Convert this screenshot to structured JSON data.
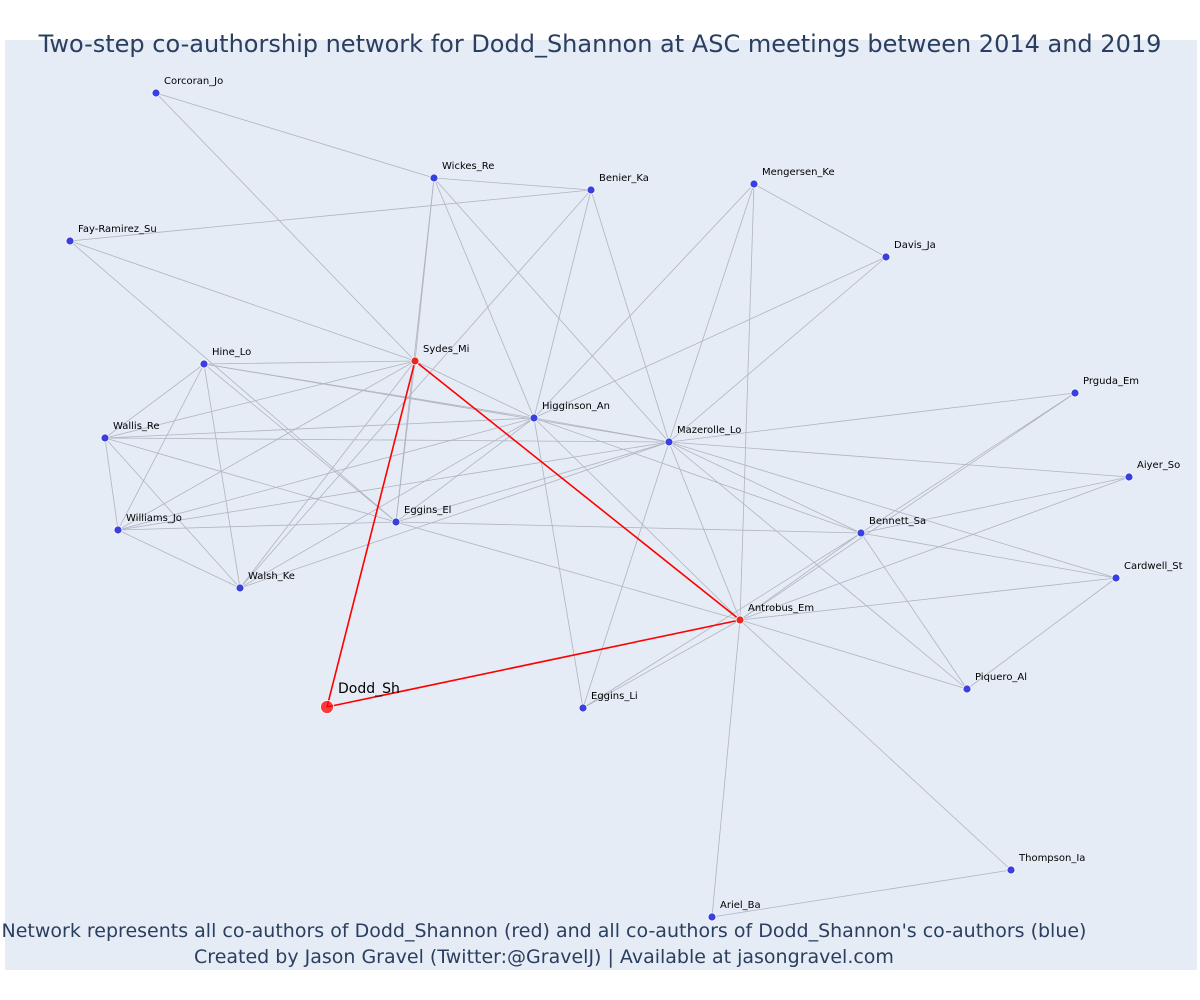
{
  "title": "Two-step co-authorship network for Dodd_Shannon at ASC meetings between 2014 and 2019",
  "caption": {
    "line1": "Network represents all co-authors of Dodd_Shannon (red) and all co-authors of Dodd_Shannon's co-authors (blue)",
    "line2": "Created by Jason Gravel (Twitter:@GravelJ) | Available at jasongravel.com"
  },
  "colors": {
    "focal": "#ff0000",
    "coauthor": "#e8281e",
    "second_step": "#3a3fe0",
    "edge": "#b0b4c0",
    "focal_edge": "#ff0000",
    "background": "#e5ecf6"
  },
  "chart_data": {
    "type": "network",
    "focal": "Dodd_Sh",
    "nodes": [
      {
        "id": "Dodd_Sh",
        "group": "focal"
      },
      {
        "id": "Sydes_Mi",
        "group": "coauthor"
      },
      {
        "id": "Antrobus_Em",
        "group": "coauthor"
      },
      {
        "id": "Corcoran_Jo",
        "group": "second"
      },
      {
        "id": "Wickes_Re",
        "group": "second"
      },
      {
        "id": "Benier_Ka",
        "group": "second"
      },
      {
        "id": "Mengersen_Ke",
        "group": "second"
      },
      {
        "id": "Fay-Ramirez_Su",
        "group": "second"
      },
      {
        "id": "Davis_Ja",
        "group": "second"
      },
      {
        "id": "Hine_Lo",
        "group": "second"
      },
      {
        "id": "Prguda_Em",
        "group": "second"
      },
      {
        "id": "Higginson_An",
        "group": "second"
      },
      {
        "id": "Wallis_Re",
        "group": "second"
      },
      {
        "id": "Mazerolle_Lo",
        "group": "second"
      },
      {
        "id": "Aiyer_So",
        "group": "second"
      },
      {
        "id": "Eggins_El",
        "group": "second"
      },
      {
        "id": "Bennett_Sa",
        "group": "second"
      },
      {
        "id": "Williams_Jo",
        "group": "second"
      },
      {
        "id": "Cardwell_St",
        "group": "second"
      },
      {
        "id": "Walsh_Ke",
        "group": "second"
      },
      {
        "id": "Piquero_Al",
        "group": "second"
      },
      {
        "id": "Eggins_Li",
        "group": "second"
      },
      {
        "id": "Thompson_Ia",
        "group": "second"
      },
      {
        "id": "Ariel_Ba",
        "group": "second"
      }
    ],
    "edges": [
      [
        "Dodd_Sh",
        "Sydes_Mi"
      ],
      [
        "Dodd_Sh",
        "Antrobus_Em"
      ],
      [
        "Sydes_Mi",
        "Antrobus_Em"
      ],
      [
        "Corcoran_Jo",
        "Wickes_Re"
      ],
      [
        "Corcoran_Jo",
        "Sydes_Mi"
      ],
      [
        "Wickes_Re",
        "Benier_Ka"
      ],
      [
        "Wickes_Re",
        "Sydes_Mi"
      ],
      [
        "Wickes_Re",
        "Higginson_An"
      ],
      [
        "Wickes_Re",
        "Mazerolle_Lo"
      ],
      [
        "Wickes_Re",
        "Eggins_El"
      ],
      [
        "Benier_Ka",
        "Fay-Ramirez_Su"
      ],
      [
        "Benier_Ka",
        "Higginson_An"
      ],
      [
        "Benier_Ka",
        "Mazerolle_Lo"
      ],
      [
        "Benier_Ka",
        "Walsh_Ke"
      ],
      [
        "Mengersen_Ke",
        "Davis_Ja"
      ],
      [
        "Mengersen_Ke",
        "Higginson_An"
      ],
      [
        "Mengersen_Ke",
        "Mazerolle_Lo"
      ],
      [
        "Mengersen_Ke",
        "Antrobus_Em"
      ],
      [
        "Fay-Ramirez_Su",
        "Sydes_Mi"
      ],
      [
        "Fay-Ramirez_Su",
        "Eggins_El"
      ],
      [
        "Davis_Ja",
        "Higginson_An"
      ],
      [
        "Davis_Ja",
        "Mazerolle_Lo"
      ],
      [
        "Hine_Lo",
        "Sydes_Mi"
      ],
      [
        "Hine_Lo",
        "Higginson_An"
      ],
      [
        "Hine_Lo",
        "Mazerolle_Lo"
      ],
      [
        "Hine_Lo",
        "Eggins_El"
      ],
      [
        "Hine_Lo",
        "Williams_Jo"
      ],
      [
        "Hine_Lo",
        "Walsh_Ke"
      ],
      [
        "Hine_Lo",
        "Wallis_Re"
      ],
      [
        "Sydes_Mi",
        "Wallis_Re"
      ],
      [
        "Sydes_Mi",
        "Williams_Jo"
      ],
      [
        "Sydes_Mi",
        "Walsh_Ke"
      ],
      [
        "Sydes_Mi",
        "Eggins_El"
      ],
      [
        "Sydes_Mi",
        "Higginson_An"
      ],
      [
        "Higginson_An",
        "Mazerolle_Lo"
      ],
      [
        "Higginson_An",
        "Wallis_Re"
      ],
      [
        "Higginson_An",
        "Williams_Jo"
      ],
      [
        "Higginson_An",
        "Eggins_El"
      ],
      [
        "Higginson_An",
        "Walsh_Ke"
      ],
      [
        "Higginson_An",
        "Eggins_Li"
      ],
      [
        "Higginson_An",
        "Bennett_Sa"
      ],
      [
        "Higginson_An",
        "Antrobus_Em"
      ],
      [
        "Mazerolle_Lo",
        "Wallis_Re"
      ],
      [
        "Mazerolle_Lo",
        "Williams_Jo"
      ],
      [
        "Mazerolle_Lo",
        "Eggins_El"
      ],
      [
        "Mazerolle_Lo",
        "Walsh_Ke"
      ],
      [
        "Mazerolle_Lo",
        "Prguda_Em"
      ],
      [
        "Mazerolle_Lo",
        "Aiyer_So"
      ],
      [
        "Mazerolle_Lo",
        "Bennett_Sa"
      ],
      [
        "Mazerolle_Lo",
        "Cardwell_St"
      ],
      [
        "Mazerolle_Lo",
        "Piquero_Al"
      ],
      [
        "Mazerolle_Lo",
        "Antrobus_Em"
      ],
      [
        "Mazerolle_Lo",
        "Eggins_Li"
      ],
      [
        "Wallis_Re",
        "Williams_Jo"
      ],
      [
        "Wallis_Re",
        "Walsh_Ke"
      ],
      [
        "Wallis_Re",
        "Eggins_El"
      ],
      [
        "Williams_Jo",
        "Eggins_El"
      ],
      [
        "Williams_Jo",
        "Walsh_Ke"
      ],
      [
        "Eggins_El",
        "Bennett_Sa"
      ],
      [
        "Eggins_El",
        "Antrobus_Em"
      ],
      [
        "Bennett_Sa",
        "Prguda_Em"
      ],
      [
        "Bennett_Sa",
        "Aiyer_So"
      ],
      [
        "Bennett_Sa",
        "Cardwell_St"
      ],
      [
        "Bennett_Sa",
        "Piquero_Al"
      ],
      [
        "Bennett_Sa",
        "Antrobus_Em"
      ],
      [
        "Bennett_Sa",
        "Eggins_Li"
      ],
      [
        "Antrobus_Em",
        "Prguda_Em"
      ],
      [
        "Antrobus_Em",
        "Aiyer_So"
      ],
      [
        "Antrobus_Em",
        "Cardwell_St"
      ],
      [
        "Antrobus_Em",
        "Piquero_Al"
      ],
      [
        "Antrobus_Em",
        "Eggins_Li"
      ],
      [
        "Antrobus_Em",
        "Thompson_Ia"
      ],
      [
        "Antrobus_Em",
        "Ariel_Ba"
      ],
      [
        "Piquero_Al",
        "Cardwell_St"
      ],
      [
        "Thompson_Ia",
        "Ariel_Ba"
      ]
    ]
  }
}
